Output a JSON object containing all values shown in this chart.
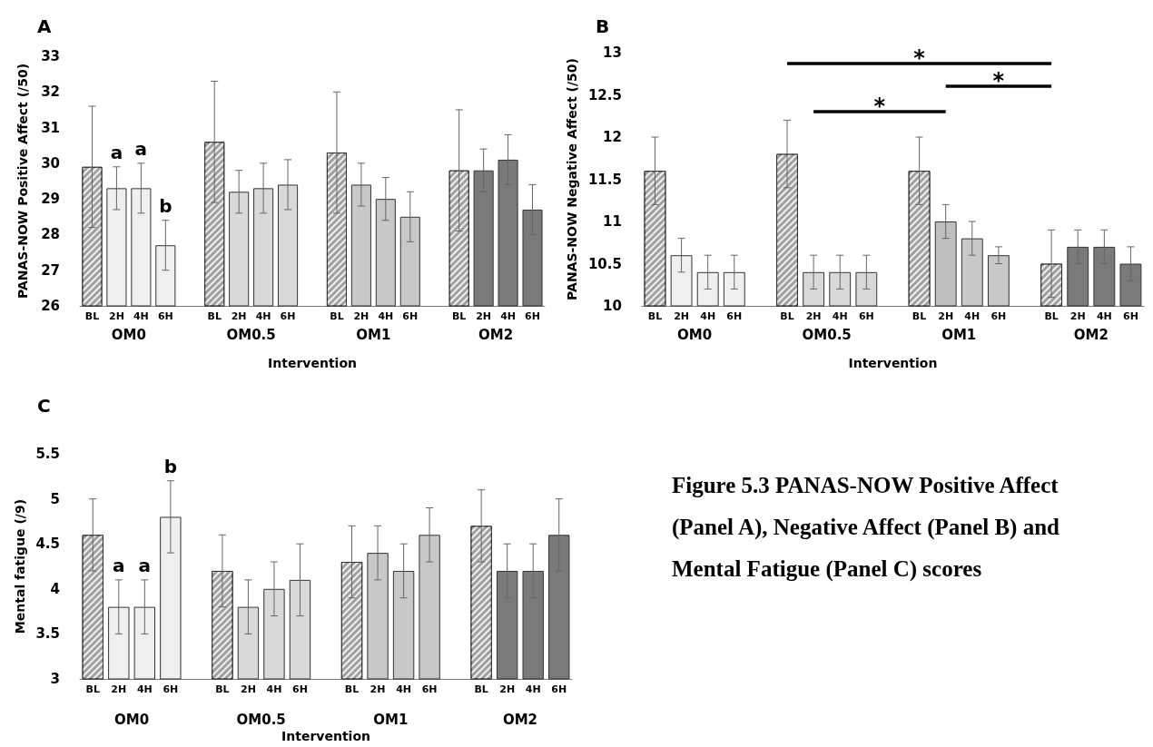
{
  "chart_data": [
    {
      "type": "bar",
      "title": "A",
      "ylabel": "PANAS-NOW Positive Affect (/50)",
      "xlabel": "Intervention",
      "categories": [
        "BL",
        "2H",
        "4H",
        "6H",
        null,
        "BL",
        "2H",
        "4H",
        "6H",
        null,
        "BL",
        "2H",
        "4H",
        "6H",
        null,
        "BL",
        "2H",
        "4H",
        "6H"
      ],
      "ylim": [
        26,
        33
      ],
      "yticks": [
        26,
        27,
        28,
        29,
        30,
        31,
        32,
        33
      ],
      "series": [
        {
          "color": "#a0a0a0",
          "values": [
            29.9,
            null,
            null,
            null,
            null,
            30.6,
            null,
            null,
            null,
            null,
            30.3,
            null,
            null,
            null,
            null,
            29.8,
            null,
            null,
            null
          ],
          "errors": [
            1.7,
            null,
            null,
            null,
            null,
            1.7,
            null,
            null,
            null,
            null,
            1.7,
            null,
            null,
            null,
            null,
            1.7,
            null,
            null,
            null
          ]
        },
        {
          "colors": [
            "#efefef",
            "#efefef",
            "#efefef",
            "#efefef",
            "#d9d9d9",
            "#d9d9d9",
            "#d9d9d9",
            "#d9d9d9",
            "#d9d9d9",
            "#c8c8c8",
            "#c8c8c8",
            "#c8c8c8",
            "#c8c8c8",
            "#c8c8c8",
            "#7a7a7a",
            "#7a7a7a",
            "#7a7a7a",
            "#7a7a7a",
            "#7a7a7a"
          ],
          "values": [
            null,
            29.3,
            29.3,
            27.7,
            null,
            null,
            29.2,
            29.3,
            29.4,
            null,
            null,
            29.4,
            29.0,
            28.5,
            null,
            null,
            29.8,
            30.1,
            28.7
          ],
          "errors": [
            null,
            0.6,
            0.7,
            0.7,
            null,
            null,
            0.6,
            0.7,
            0.7,
            null,
            null,
            0.6,
            0.6,
            0.7,
            null,
            null,
            0.6,
            0.7,
            0.7
          ],
          "value_labels": [
            null,
            "a",
            "a",
            "b",
            null,
            null,
            null,
            null,
            null,
            null,
            null,
            null,
            null,
            null,
            null,
            null,
            null,
            null,
            null
          ]
        }
      ],
      "annotations": [
        "OM0",
        "OM0.5",
        "OM1",
        "OM2"
      ]
    },
    {
      "type": "bar",
      "title": "B",
      "ylabel": "PANAS-NOW Negative Affect (/50)",
      "xlabel": "Intervention",
      "categories": [
        "BL",
        "2H",
        "4H",
        "6H",
        null,
        "BL",
        "2H",
        "4H",
        "6H",
        null,
        "BL",
        "2H",
        "4H",
        "6H",
        null,
        "BL",
        "2H",
        "4H",
        "6H"
      ],
      "ylim": [
        10,
        13
      ],
      "yticks": [
        10,
        10.5,
        11,
        11.5,
        12,
        12.5,
        13
      ],
      "series": [
        {
          "color": "#a0a0a0",
          "values": [
            11.6,
            null,
            null,
            null,
            null,
            11.8,
            null,
            null,
            null,
            null,
            11.6,
            null,
            null,
            null,
            null,
            10.5,
            null,
            null,
            null
          ],
          "errors": [
            0.4,
            null,
            null,
            null,
            null,
            0.4,
            null,
            null,
            null,
            null,
            0.4,
            null,
            null,
            null,
            null,
            0.4,
            null,
            null,
            null
          ]
        },
        {
          "colors": [
            "#efefef",
            "#efefef",
            "#efefef",
            "#efefef",
            "#d9d9d9",
            "#d9d9d9",
            "#d9d9d9",
            "#d9d9d9",
            "#d9d9d9",
            "#c8c8c8",
            "#c8c8c8",
            "#bfbfbf",
            "#c8c8c8",
            "#c8c8c8",
            "#7a7a7a",
            "#7a7a7a",
            "#7a7a7a",
            "#7a7a7a",
            "#7a7a7a"
          ],
          "values": [
            null,
            10.6,
            10.4,
            10.4,
            null,
            null,
            10.4,
            10.4,
            10.4,
            null,
            null,
            11.0,
            10.8,
            10.6,
            null,
            null,
            10.7,
            10.7,
            10.5
          ],
          "errors": [
            null,
            0.2,
            0.2,
            0.2,
            null,
            null,
            0.2,
            0.2,
            0.2,
            null,
            null,
            0.2,
            0.2,
            0.1,
            null,
            null,
            0.2,
            0.2,
            0.2
          ]
        }
      ],
      "annotations": [
        "OM0",
        "OM0.5",
        "OM1",
        "OM2",
        "*",
        "*",
        "*"
      ]
    },
    {
      "type": "bar",
      "title": "C",
      "ylabel": "Mental fatigue (/9)",
      "xlabel": "Intervention",
      "categories": [
        "BL",
        "2H",
        "4H",
        "6H",
        null,
        "BL",
        "2H",
        "4H",
        "6H",
        null,
        "BL",
        "2H",
        "4H",
        "6H",
        null,
        "BL",
        "2H",
        "4H",
        "6H"
      ],
      "ylim": [
        3,
        5.5
      ],
      "yticks": [
        3,
        3.5,
        4,
        4.5,
        5,
        5.5
      ],
      "series": [
        {
          "color": "#a0a0a0",
          "values": [
            4.6,
            null,
            null,
            null,
            null,
            4.2,
            null,
            null,
            null,
            null,
            4.3,
            null,
            null,
            null,
            null,
            4.7,
            null,
            null,
            null
          ],
          "errors": [
            0.4,
            null,
            null,
            null,
            null,
            0.4,
            null,
            null,
            null,
            null,
            0.4,
            null,
            null,
            null,
            null,
            0.4,
            null,
            null,
            null
          ]
        },
        {
          "colors": [
            "#efefef",
            "#efefef",
            "#efefef",
            "#efefef",
            "#d9d9d9",
            "#d9d9d9",
            "#d9d9d9",
            "#d9d9d9",
            "#d9d9d9",
            "#c8c8c8",
            "#c8c8c8",
            "#c8c8c8",
            "#c8c8c8",
            "#c8c8c8",
            "#7a7a7a",
            "#7a7a7a",
            "#7a7a7a",
            "#7a7a7a",
            "#7a7a7a"
          ],
          "values": [
            null,
            3.8,
            3.8,
            4.8,
            null,
            null,
            3.8,
            4.0,
            4.1,
            null,
            null,
            4.4,
            4.2,
            4.6,
            null,
            null,
            4.2,
            4.2,
            4.6
          ],
          "errors": [
            null,
            0.3,
            0.3,
            0.4,
            null,
            null,
            0.3,
            0.3,
            0.4,
            null,
            null,
            0.3,
            0.3,
            0.3,
            null,
            null,
            0.3,
            0.3,
            0.4
          ],
          "value_labels": [
            null,
            "a",
            "a",
            "b",
            null,
            null,
            null,
            null,
            null,
            null,
            null,
            null,
            null,
            null,
            null,
            null,
            null,
            null,
            null
          ]
        }
      ],
      "annotations": [
        "OM0",
        "OM0.5",
        "OM1",
        "OM2"
      ]
    },
    {
      "type": "other",
      "title": "Figure 5.3 PANAS-NOW Positive Affect (Panel A), Negative Affect (Panel B) and Mental Fatigue (Panel C) scores"
    }
  ]
}
